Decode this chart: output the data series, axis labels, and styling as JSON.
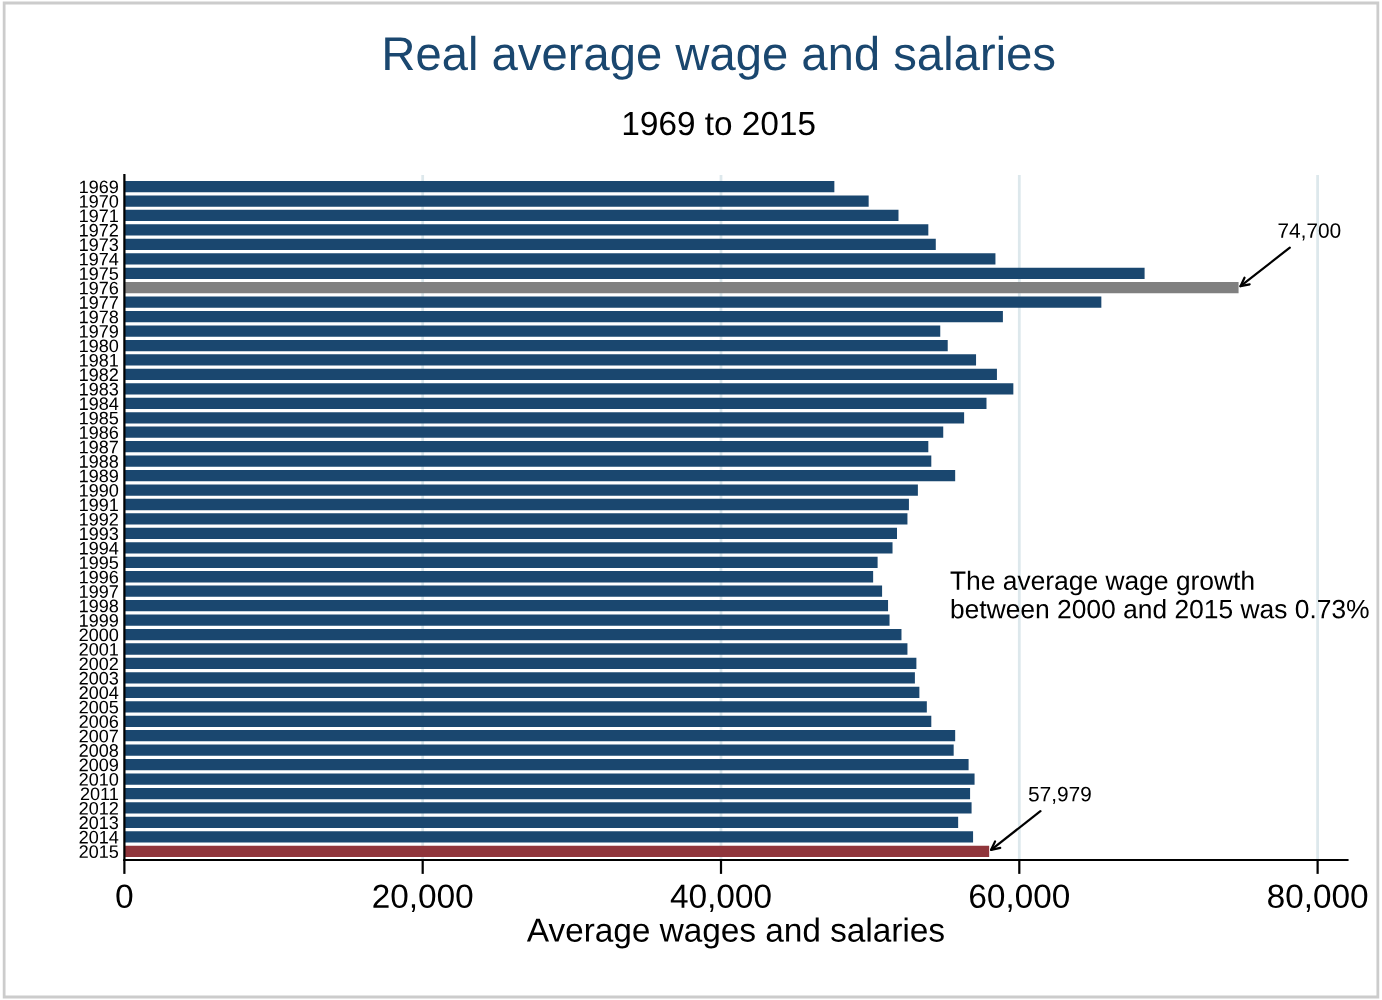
{
  "chart_data": {
    "type": "bar",
    "orientation": "horizontal",
    "title": "Real average wage and salaries",
    "subtitle": "1969 to 2015",
    "xlabel": "Average wages and salaries",
    "categories": [
      "1969",
      "1970",
      "1971",
      "1972",
      "1973",
      "1974",
      "1975",
      "1976",
      "1977",
      "1978",
      "1979",
      "1980",
      "1981",
      "1982",
      "1983",
      "1984",
      "1985",
      "1986",
      "1987",
      "1988",
      "1989",
      "1990",
      "1991",
      "1992",
      "1993",
      "1994",
      "1995",
      "1996",
      "1997",
      "1998",
      "1999",
      "2000",
      "2001",
      "2002",
      "2003",
      "2004",
      "2005",
      "2006",
      "2007",
      "2008",
      "2009",
      "2010",
      "2011",
      "2012",
      "2013",
      "2014",
      "2015"
    ],
    "values": [
      47600,
      49900,
      51900,
      53900,
      54400,
      58400,
      68400,
      74700,
      65500,
      58900,
      54700,
      55200,
      57100,
      58500,
      59600,
      57800,
      56300,
      54900,
      53900,
      54100,
      55700,
      53200,
      52600,
      52500,
      51800,
      51500,
      50500,
      50200,
      50800,
      51200,
      51300,
      52100,
      52500,
      53100,
      53000,
      53300,
      53800,
      54100,
      55700,
      55600,
      56600,
      57000,
      56700,
      56800,
      55900,
      56900,
      57979
    ],
    "colors": [
      "#1a476f",
      "#1a476f",
      "#1a476f",
      "#1a476f",
      "#1a476f",
      "#1a476f",
      "#1a476f",
      "#808080",
      "#1a476f",
      "#1a476f",
      "#1a476f",
      "#1a476f",
      "#1a476f",
      "#1a476f",
      "#1a476f",
      "#1a476f",
      "#1a476f",
      "#1a476f",
      "#1a476f",
      "#1a476f",
      "#1a476f",
      "#1a476f",
      "#1a476f",
      "#1a476f",
      "#1a476f",
      "#1a476f",
      "#1a476f",
      "#1a476f",
      "#1a476f",
      "#1a476f",
      "#1a476f",
      "#1a476f",
      "#1a476f",
      "#1a476f",
      "#1a476f",
      "#1a476f",
      "#1a476f",
      "#1a476f",
      "#1a476f",
      "#1a476f",
      "#1a476f",
      "#1a476f",
      "#1a476f",
      "#1a476f",
      "#1a476f",
      "#1a476f",
      "#90353b"
    ],
    "xlim": [
      0,
      82000
    ],
    "xticks": [
      0,
      {
        "value": 20000,
        "label": "20,000"
      },
      {
        "value": 40000,
        "label": "40,000"
      },
      {
        "value": 60000,
        "label": "60,000"
      },
      {
        "value": 80000,
        "label": "80,000"
      }
    ],
    "grid": "x",
    "annotations": [
      {
        "text": "74,700",
        "x": 74700,
        "y": "1976"
      },
      {
        "text": "57,979",
        "x": 57979,
        "y": "2015"
      },
      "The average wage growth\nbetween 2000 and 2015 was 0.73%"
    ]
  }
}
